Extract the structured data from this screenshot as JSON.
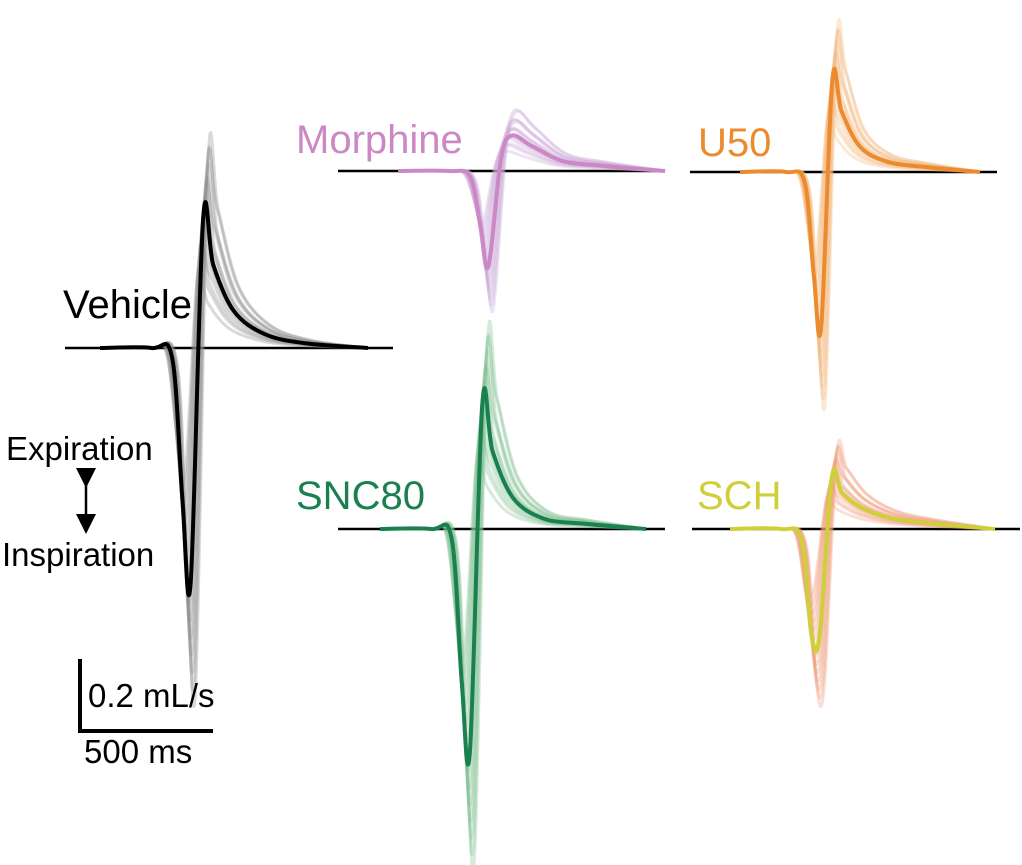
{
  "figure": {
    "annotations": {
      "expiration": "Expiration",
      "inspiration": "Inspiration"
    },
    "scale_bar": {
      "flow_label": "0.2 mL/s",
      "time_label": "500 ms"
    }
  },
  "chart_data": [
    {
      "type": "line",
      "title": "Vehicle",
      "color": "#000000",
      "band_color": "#8a8a8a",
      "t": [
        0,
        0.25,
        0.35,
        0.4,
        0.44,
        0.5,
        0.55,
        0.65,
        0.8,
        1.0,
        1.3
      ],
      "series": [
        {
          "name": "Vehicle",
          "values": [
            0,
            0,
            -0.02,
            -0.3,
            -0.46,
            0.28,
            0.18,
            0.08,
            0.03,
            0.01,
            0
          ]
        }
      ],
      "y_range": [
        -0.55,
        0.42
      ]
    },
    {
      "type": "line",
      "title": "Morphine",
      "color": "#cc88c4",
      "band_color": "#c9a7d6",
      "t": [
        0,
        0.25,
        0.35,
        0.4,
        0.44,
        0.5,
        0.55,
        0.65,
        0.8,
        1.0,
        1.3
      ],
      "series": [
        {
          "name": "Morphine",
          "values": [
            0,
            0,
            -0.01,
            -0.1,
            -0.18,
            0.02,
            0.07,
            0.05,
            0.02,
            0.01,
            0
          ]
        }
      ],
      "y_range": [
        -0.3,
        0.2
      ]
    },
    {
      "type": "line",
      "title": "U50",
      "color": "#ec8a2e",
      "band_color": "#f4b77c",
      "t": [
        0,
        0.25,
        0.35,
        0.4,
        0.44,
        0.5,
        0.55,
        0.65,
        0.8,
        1.0,
        1.3
      ],
      "series": [
        {
          "name": "U50",
          "values": [
            0,
            0,
            -0.02,
            -0.2,
            -0.3,
            0.18,
            0.12,
            0.05,
            0.02,
            0.01,
            0
          ]
        }
      ],
      "y_range": [
        -0.38,
        0.26
      ]
    },
    {
      "type": "line",
      "title": "SNC80",
      "color": "#1a8050",
      "band_color": "#7cbf8e",
      "t": [
        0,
        0.25,
        0.35,
        0.4,
        0.44,
        0.5,
        0.55,
        0.65,
        0.8,
        1.0,
        1.3
      ],
      "series": [
        {
          "name": "SNC80",
          "values": [
            0,
            0,
            -0.02,
            -0.32,
            -0.46,
            0.24,
            0.15,
            0.06,
            0.02,
            0.01,
            0
          ]
        }
      ],
      "y_range": [
        -0.58,
        0.44
      ]
    },
    {
      "type": "line",
      "title": "SCH",
      "color": "#cfcf3a",
      "band_color": "#f09a7a",
      "t": [
        0,
        0.25,
        0.35,
        0.4,
        0.44,
        0.5,
        0.55,
        0.65,
        0.8,
        1.0,
        1.3
      ],
      "series": [
        {
          "name": "SCH",
          "values": [
            0,
            0,
            -0.02,
            -0.2,
            -0.2,
            0.1,
            0.07,
            0.04,
            0.02,
            0.01,
            0
          ]
        }
      ],
      "y_range": [
        -0.5,
        0.28
      ]
    }
  ]
}
